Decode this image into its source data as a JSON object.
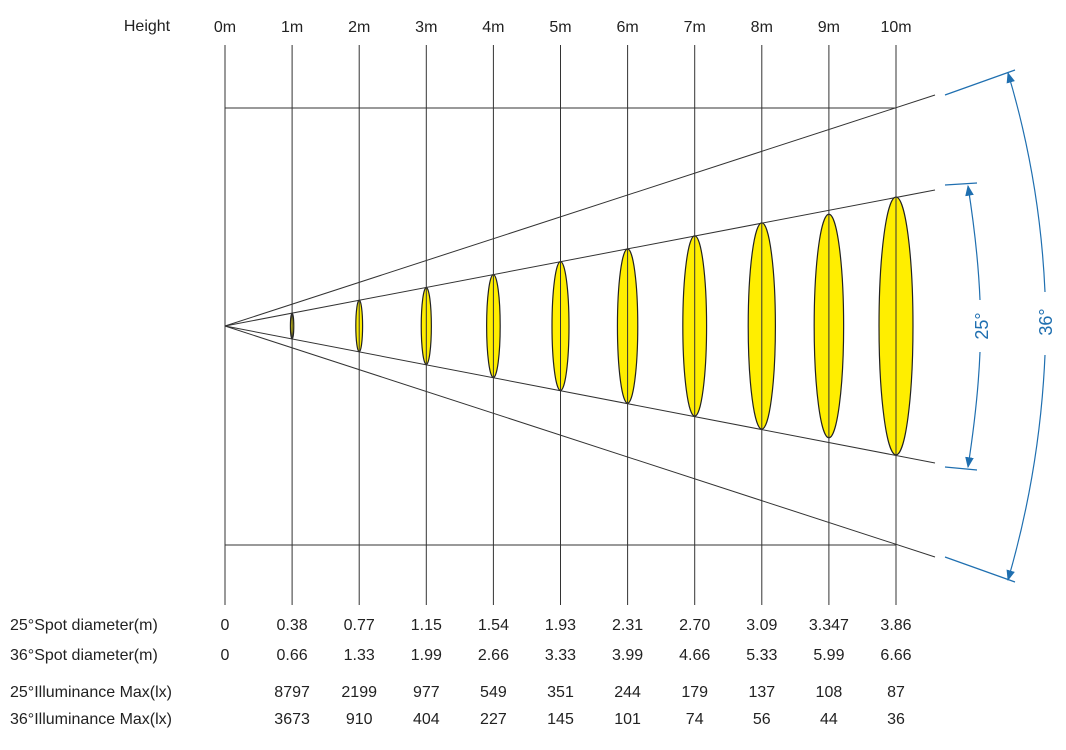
{
  "header": {
    "label": "Height",
    "columns": [
      "0m",
      "1m",
      "2m",
      "3m",
      "4m",
      "5m",
      "6m",
      "7m",
      "8m",
      "9m",
      "10m"
    ]
  },
  "angles": [
    "25°",
    "36°"
  ],
  "rows": [
    {
      "label": "25°Spot diameter(m)",
      "values": [
        "0",
        "0.38",
        "0.77",
        "1.15",
        "1.54",
        "1.93",
        "2.31",
        "2.70",
        "3.09",
        "3.347",
        "3.86"
      ]
    },
    {
      "label": "36°Spot diameter(m)",
      "values": [
        "0",
        "0.66",
        "1.33",
        "1.99",
        "2.66",
        "3.33",
        "3.99",
        "4.66",
        "5.33",
        "5.99",
        "6.66"
      ]
    },
    {
      "label": "25°Illuminance Max(lx)",
      "values": [
        "8797",
        "2199",
        "977",
        "549",
        "351",
        "244",
        "179",
        "137",
        "108",
        "87"
      ]
    },
    {
      "label": "36°Illuminance Max(lx)",
      "values": [
        "3673",
        "910",
        "404",
        "227",
        "145",
        "101",
        "74",
        "56",
        "44",
        "36"
      ]
    }
  ]
}
